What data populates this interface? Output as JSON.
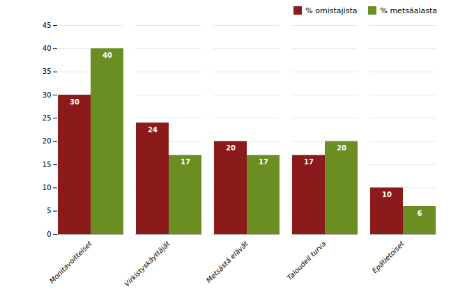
{
  "chart_data": {
    "type": "bar",
    "categories": [
      "Monitavoitteiset",
      "Virkistyskäyttäjät",
      "Metsästä elävät",
      "Taloudell turva",
      "Epätietoiset"
    ],
    "series": [
      {
        "name": "% omistajista",
        "color": "#8B1A1A",
        "values": [
          30,
          24,
          20,
          17,
          10
        ]
      },
      {
        "name": "% metsäalasta",
        "color": "#6B8E23",
        "values": [
          40,
          17,
          17,
          20,
          6
        ]
      }
    ],
    "ylim": [
      0,
      45
    ],
    "yticks": [
      0,
      5,
      10,
      15,
      20,
      25,
      30,
      35,
      40,
      45
    ],
    "grid": true,
    "legend": "upper right",
    "data_labels": true
  }
}
